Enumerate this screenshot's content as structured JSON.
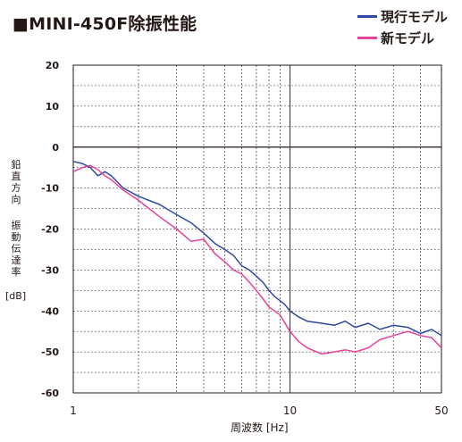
{
  "title": "■MINI-450F除振性能",
  "legend": [
    {
      "label": "現行モデル",
      "color": "#2b4aa0"
    },
    {
      "label": "新モデル",
      "color": "#e8419a"
    }
  ],
  "ylabel_chars_1": [
    "鉛",
    "直",
    "方",
    "向"
  ],
  "ylabel_chars_2": [
    "振",
    "動",
    "伝",
    "達",
    "率"
  ],
  "yunit": "[dB]",
  "xlabel": "周波数 [Hz]",
  "chart_data": {
    "type": "line",
    "xscale": "log",
    "xlim": [
      1,
      50
    ],
    "ylim": [
      -60,
      20
    ],
    "xticks": [
      1,
      10,
      50
    ],
    "yticks": [
      20,
      10,
      0,
      -10,
      -20,
      -30,
      -40,
      -50,
      -60
    ],
    "grid": true,
    "legend_position": "top-right",
    "series": [
      {
        "name": "現行モデル",
        "color": "#2b4aa0",
        "x": [
          1.0,
          1.1,
          1.2,
          1.3,
          1.4,
          1.5,
          1.7,
          2.0,
          2.5,
          3.0,
          3.5,
          4.0,
          4.5,
          5.0,
          5.5,
          6.0,
          6.5,
          7.0,
          7.5,
          8.0,
          8.5,
          9.0,
          9.5,
          10.0,
          11.0,
          12.0,
          14.0,
          16.0,
          18.0,
          20.0,
          23.0,
          26.0,
          30.0,
          35.0,
          40.0,
          45.0,
          50.0
        ],
        "y": [
          -3.5,
          -4,
          -5,
          -7,
          -6,
          -7,
          -10,
          -12,
          -14,
          -16.5,
          -18.5,
          -21,
          -23.5,
          -25,
          -26.5,
          -29,
          -30,
          -31.5,
          -33,
          -35,
          -36.5,
          -37.5,
          -38.5,
          -40,
          -41.5,
          -42.5,
          -43,
          -43.5,
          -42.5,
          -44,
          -43,
          -44.5,
          -43.5,
          -44,
          -45.5,
          -44.5,
          -46
        ]
      },
      {
        "name": "新モデル",
        "color": "#e8419a",
        "x": [
          1.0,
          1.1,
          1.2,
          1.3,
          1.4,
          1.5,
          1.7,
          2.0,
          2.5,
          3.0,
          3.5,
          4.0,
          4.5,
          5.0,
          5.5,
          6.0,
          6.5,
          7.0,
          7.5,
          8.0,
          8.5,
          9.0,
          9.5,
          10.0,
          11.0,
          12.0,
          14.0,
          16.0,
          18.0,
          20.0,
          23.0,
          26.0,
          30.0,
          35.0,
          40.0,
          45.0,
          50.0
        ],
        "y": [
          -6,
          -5,
          -4.5,
          -5.5,
          -7,
          -8,
          -10.5,
          -13,
          -17,
          -20,
          -23,
          -22.5,
          -26,
          -28,
          -30,
          -31,
          -33,
          -35,
          -37,
          -39,
          -40,
          -41,
          -43,
          -45,
          -47.5,
          -49,
          -50.5,
          -50,
          -49.5,
          -50,
          -49,
          -47,
          -46,
          -45,
          -46,
          -46.5,
          -49
        ]
      }
    ]
  }
}
